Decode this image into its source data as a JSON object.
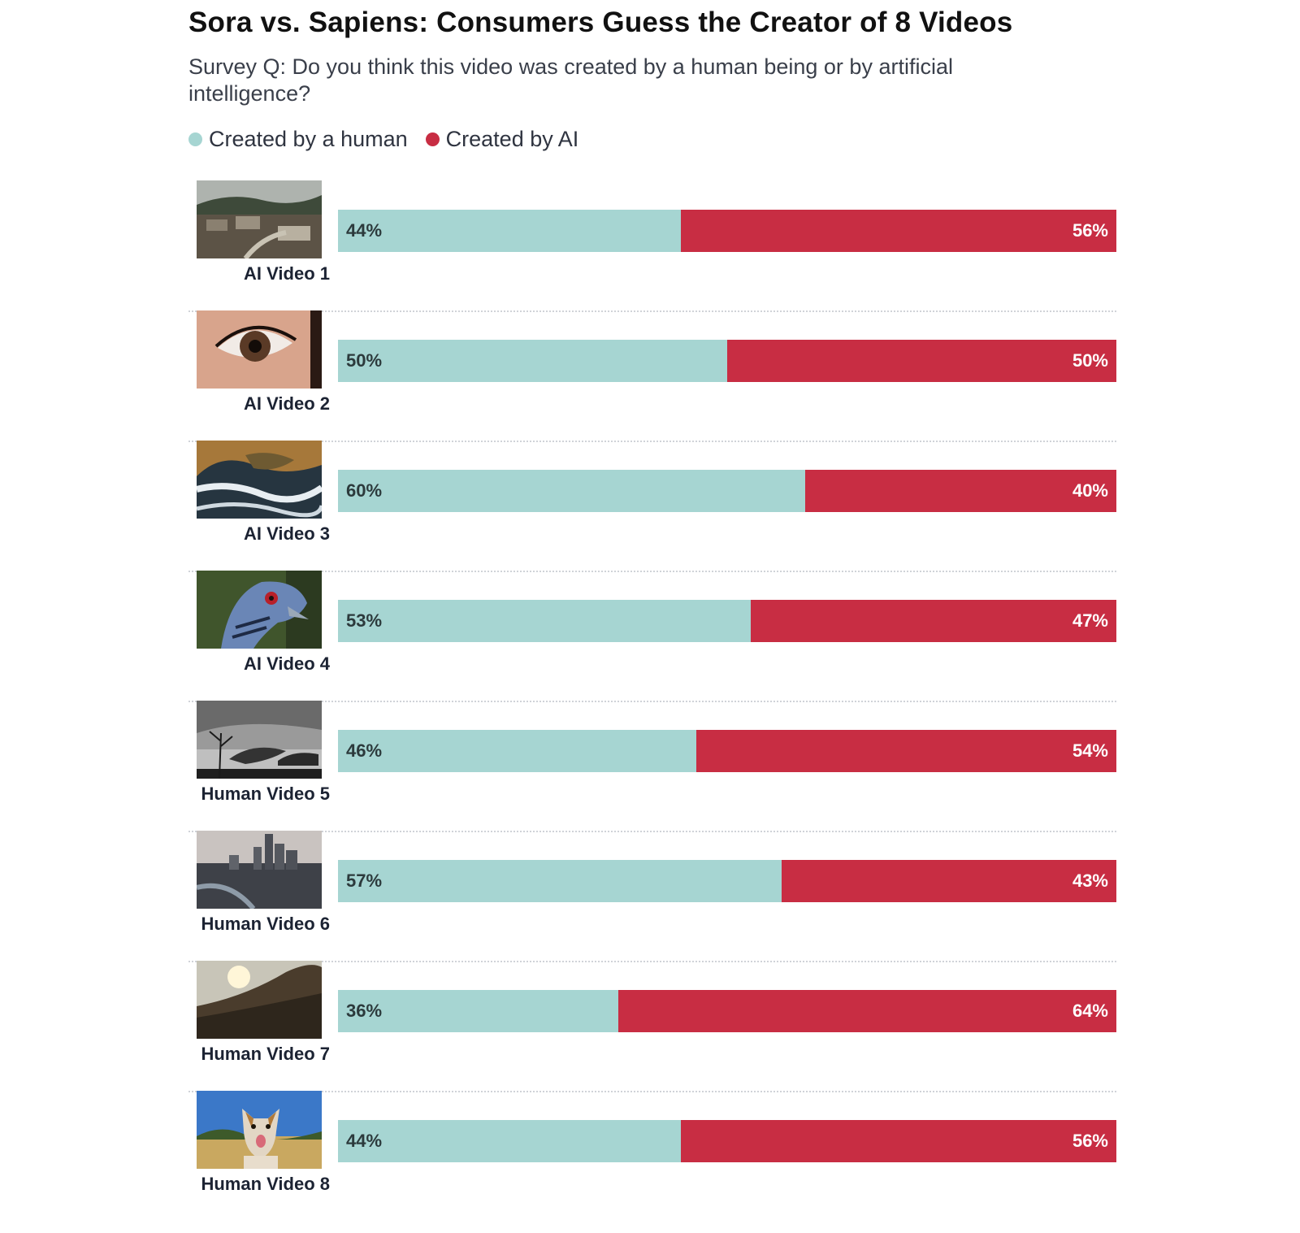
{
  "colors": {
    "human": "#a6d5d2",
    "ai": "#c82d43"
  },
  "chart_data": {
    "type": "bar",
    "stacked": true,
    "orientation": "horizontal",
    "title": "Sora vs. Sapiens: Consumers Guess the Creator of 8 Videos",
    "subtitle": "Survey Q: Do you think this video was created by a human being or by artificial intelligence?",
    "legend_position": "top-left",
    "categories": [
      "AI Video 1",
      "AI Video 2",
      "AI Video 3",
      "AI Video 4",
      "Human Video 5",
      "Human Video 6",
      "Human Video 7",
      "Human Video 8"
    ],
    "series": [
      {
        "name": "Created by a human",
        "values": [
          44,
          50,
          60,
          53,
          46,
          57,
          36,
          44
        ],
        "labels": [
          "44%",
          "50%",
          "60%",
          "53%",
          "46%",
          "57%",
          "36%",
          "44%"
        ]
      },
      {
        "name": "Created by AI",
        "values": [
          56,
          50,
          40,
          47,
          54,
          43,
          64,
          56
        ],
        "labels": [
          "56%",
          "50%",
          "40%",
          "47%",
          "54%",
          "43%",
          "64%",
          "56%"
        ]
      }
    ],
    "thumbnails": [
      "village-icon",
      "eye-icon",
      "coast-icon",
      "bird-icon",
      "smoke-icon",
      "city-icon",
      "sunset-icon",
      "dog-icon"
    ]
  }
}
